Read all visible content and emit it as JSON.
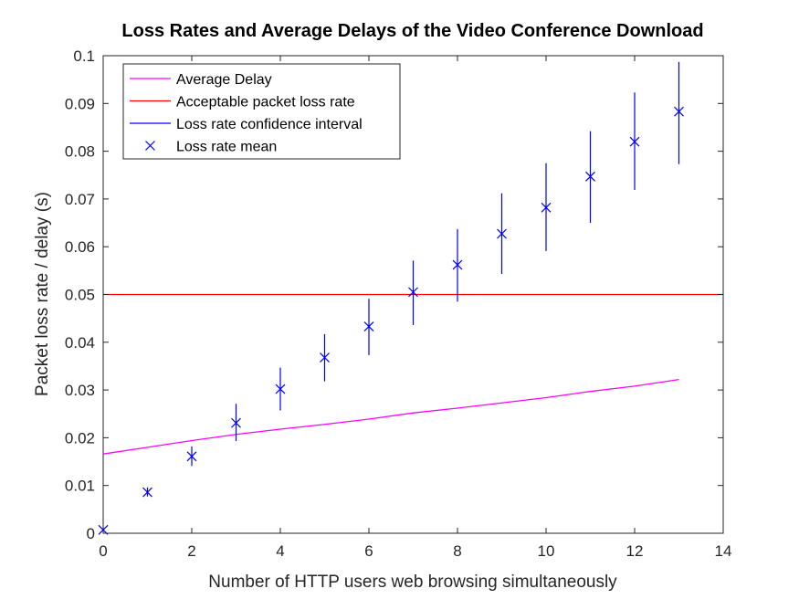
{
  "chart_data": {
    "type": "scatter",
    "title": "Loss Rates and Average Delays of the Video Conference Download",
    "xlabel": "Number of HTTP users web browsing simultaneously",
    "ylabel": "Packet loss rate / delay (s)",
    "xlim": [
      0,
      14
    ],
    "ylim": [
      0,
      0.1
    ],
    "xticks": [
      "0",
      "2",
      "4",
      "6",
      "8",
      "10",
      "12",
      "14"
    ],
    "yticks": [
      "0",
      "0.01",
      "0.02",
      "0.03",
      "0.04",
      "0.05",
      "0.06",
      "0.07",
      "0.08",
      "0.09",
      "0.1"
    ],
    "grid": false,
    "legend_position": "top-left",
    "series": [
      {
        "name": "Average Delay",
        "kind": "line",
        "color": "#ff00ff",
        "x": [
          0,
          1,
          2,
          3,
          4,
          5,
          6,
          7,
          8,
          9,
          10,
          11,
          12,
          13
        ],
        "y": [
          0.0166,
          0.018,
          0.0194,
          0.0207,
          0.0218,
          0.0228,
          0.0239,
          0.0252,
          0.0262,
          0.0273,
          0.0284,
          0.0297,
          0.0308,
          0.0322
        ]
      },
      {
        "name": "Acceptable packet loss rate",
        "kind": "hline",
        "color": "#ff0000",
        "y": 0.05
      },
      {
        "name": "Loss rate confidence interval",
        "kind": "errorbar",
        "color": "#0000ff",
        "x": [
          0,
          1,
          2,
          3,
          4,
          5,
          6,
          7,
          8,
          9,
          10,
          11,
          12,
          13
        ],
        "low": [
          0.0004,
          0.0077,
          0.0141,
          0.0193,
          0.0257,
          0.0318,
          0.0373,
          0.0436,
          0.0485,
          0.0543,
          0.0591,
          0.065,
          0.0719,
          0.0773
        ],
        "high": [
          0.0011,
          0.0096,
          0.0182,
          0.0271,
          0.0347,
          0.0417,
          0.0491,
          0.0571,
          0.0637,
          0.0712,
          0.0775,
          0.0842,
          0.0923,
          0.0987
        ]
      },
      {
        "name": "Loss rate mean",
        "kind": "marker",
        "marker": "x",
        "color": "#0000ff",
        "x": [
          0,
          1,
          2,
          3,
          4,
          5,
          6,
          7,
          8,
          9,
          10,
          11,
          12,
          13
        ],
        "y": [
          0.0007,
          0.0086,
          0.0161,
          0.0231,
          0.0302,
          0.0368,
          0.0433,
          0.0505,
          0.0562,
          0.0627,
          0.0682,
          0.0747,
          0.082,
          0.0883
        ]
      }
    ]
  }
}
